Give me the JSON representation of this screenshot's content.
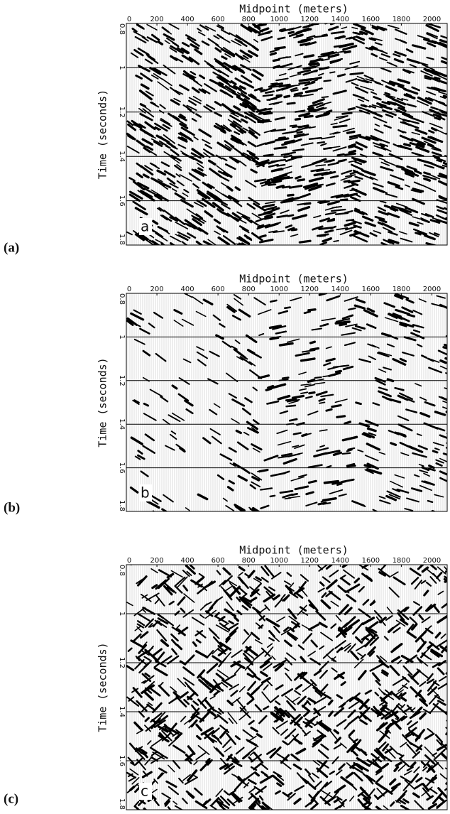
{
  "chart_data": [
    {
      "type": "seismic",
      "xlabel": "Midpoint (meters)",
      "ylabel": "Time (seconds)",
      "panel_label": "(a)",
      "inset_label": "a",
      "xlim": [
        0,
        2100
      ],
      "xticks": [
        0,
        200,
        400,
        600,
        800,
        1000,
        1200,
        1400,
        1600,
        1800,
        2000
      ],
      "ylim": [
        0.8,
        1.8
      ],
      "yticks": [
        0.8,
        1,
        1.2,
        1.4,
        1.6,
        1.8
      ],
      "y_inverted": true,
      "grid": true
    },
    {
      "type": "seismic",
      "xlabel": "Midpoint (meters)",
      "ylabel": "Time (seconds)",
      "panel_label": "(b)",
      "inset_label": "b",
      "xlim": [
        0,
        2100
      ],
      "xticks": [
        0,
        200,
        400,
        600,
        800,
        1000,
        1200,
        1400,
        1600,
        1800,
        2000
      ],
      "ylim": [
        0.8,
        1.8
      ],
      "yticks": [
        0.8,
        1,
        1.2,
        1.4,
        1.6,
        1.8
      ],
      "y_inverted": true,
      "grid": true
    },
    {
      "type": "seismic",
      "xlabel": "Midpoint (meters)",
      "ylabel": "Time (seconds)",
      "panel_label": "(c)",
      "inset_label": "c",
      "xlim": [
        0,
        2100
      ],
      "xticks": [
        0,
        200,
        400,
        600,
        800,
        1000,
        1200,
        1400,
        1600,
        1800,
        2000
      ],
      "ylim": [
        0.8,
        1.8
      ],
      "yticks": [
        0.8,
        1,
        1.2,
        1.4,
        1.6,
        1.8
      ],
      "y_inverted": true,
      "grid": true
    }
  ]
}
